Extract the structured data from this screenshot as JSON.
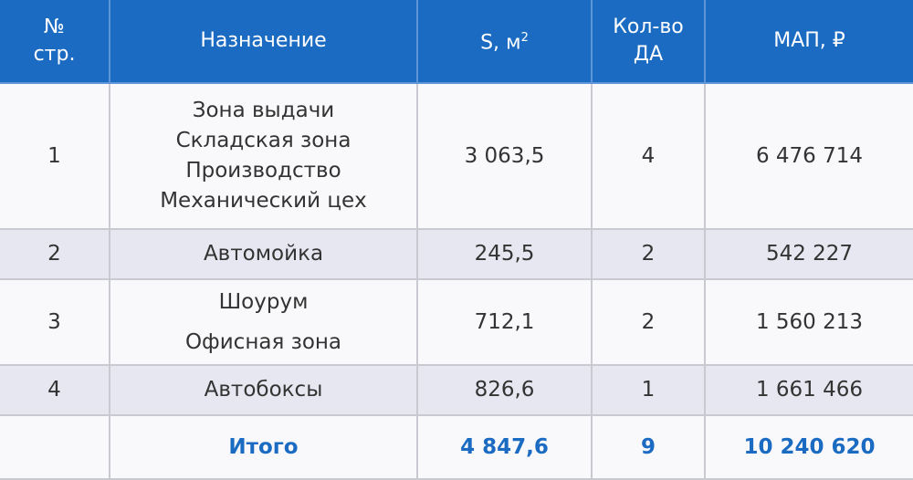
{
  "header": {
    "col_num": [
      "№",
      "стр."
    ],
    "col_purpose": "Назначение",
    "col_area": "S, м",
    "col_area_sup": "2",
    "col_count": [
      "Кол-во",
      "ДА"
    ],
    "col_map": "МАП, ₽"
  },
  "rows": [
    {
      "num": "1",
      "purpose": [
        "Зона выдачи",
        "Складская зона",
        "Производство",
        "Механический цех"
      ],
      "area": "3 063,5",
      "count": "4",
      "map": "6 476 714"
    },
    {
      "num": "2",
      "purpose": [
        "Автомойка"
      ],
      "area": "245,5",
      "count": "2",
      "map": "542 227"
    },
    {
      "num": "3",
      "purpose": [
        "Шоурум",
        "Офисная зона"
      ],
      "area": "712,1",
      "count": "2",
      "map": "1 560 213"
    },
    {
      "num": "4",
      "purpose": [
        "Автобоксы"
      ],
      "area": "826,6",
      "count": "1",
      "map": "1 661 466"
    }
  ],
  "total": {
    "label": "Итого",
    "area": "4 847,6",
    "count": "9",
    "map": "10 240 620"
  },
  "colors": {
    "header_bg": "#1b6bc2",
    "alt_row": "#e7e7f1",
    "total_text": "#1b6bc2"
  }
}
